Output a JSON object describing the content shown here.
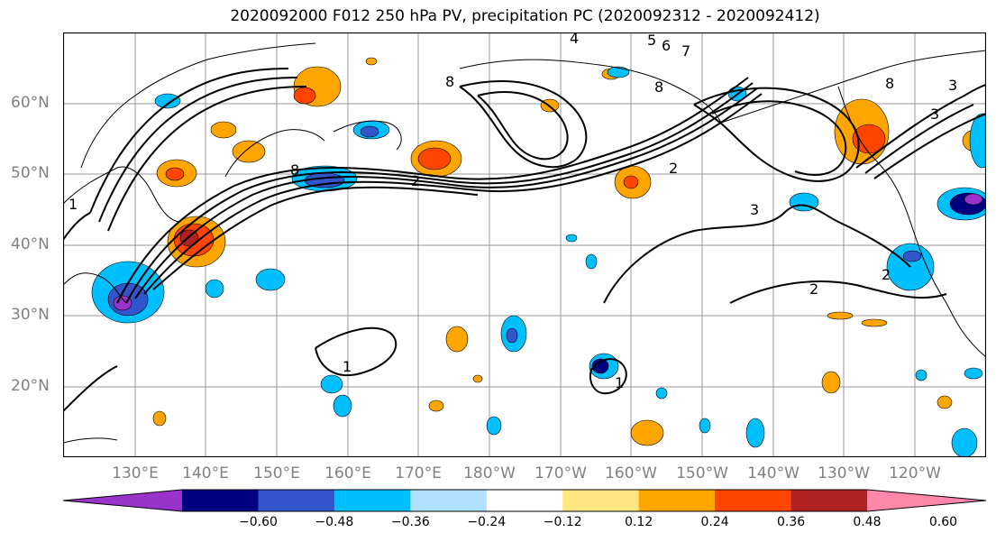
{
  "title": "2020092000 F012 250 hPa PV, precipitation PC (2020092312 - 2020092412)",
  "lat_labels": [
    "60°N",
    "50°N",
    "40°N",
    "30°N",
    "20°N"
  ],
  "lon_labels": [
    "130°E",
    "140°E",
    "150°E",
    "160°E",
    "170°E",
    "180°W",
    "170°W",
    "160°W",
    "150°W",
    "140°W",
    "130°W",
    "120°W"
  ],
  "pv_contour_labels": [
    "1",
    "1",
    "1",
    "2",
    "2",
    "2",
    "2",
    "3",
    "3",
    "3",
    "4",
    "5",
    "6",
    "7",
    "8",
    "8",
    "8",
    "8"
  ],
  "colorbar": {
    "ticks": [
      "−0.60",
      "−0.48",
      "−0.36",
      "−0.24",
      "−0.12",
      "0.12",
      "0.24",
      "0.36",
      "0.48",
      "0.60"
    ],
    "colors": [
      "#9933cc",
      "#000080",
      "#3355cc",
      "#00bfff",
      "#b0e2ff",
      "#ffffff",
      "#ffe680",
      "#ffa500",
      "#ff4500",
      "#b22222",
      "#ff88aa"
    ]
  }
}
